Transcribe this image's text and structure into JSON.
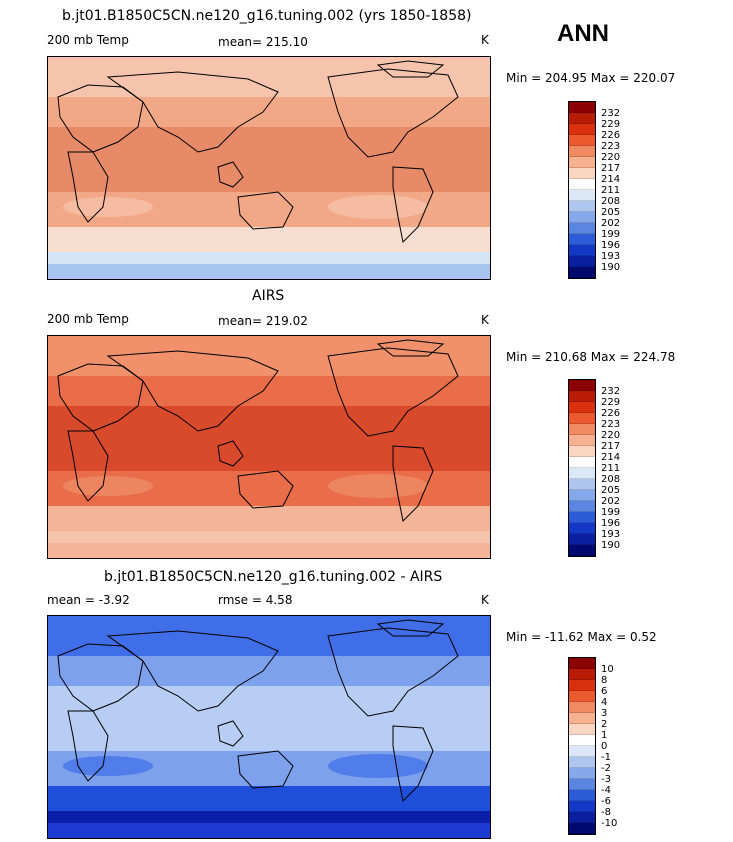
{
  "season": "ANN",
  "panels": [
    {
      "title": "b.jt01.B1850C5CN.ne120_g16.tuning.002 (yrs 1850-1858)",
      "left_label": "200 mb Temp",
      "mid_label": "mean= 215.10",
      "unit": "K",
      "minmax": "Min = 204.95 Max = 220.07",
      "colors": [
        "#f8ded0",
        "#f6c4ac",
        "#f2a887",
        "#e68a68"
      ],
      "polar_colors": [
        "#d6e4f8",
        "#a7c3ef"
      ]
    },
    {
      "title": "AIRS",
      "left_label": "200 mb Temp",
      "mid_label": "mean= 219.02",
      "unit": "K",
      "minmax": "Min = 210.68 Max = 224.78",
      "colors": [
        "#f4b497",
        "#f0916b",
        "#e86d48",
        "#d84a2b"
      ],
      "polar_colors": [
        "#f6c4ac",
        "#f4b497"
      ]
    },
    {
      "title": "b.jt01.B1850C5CN.ne120_g16.tuning.002 - AIRS",
      "left_label": "mean =   -3.92",
      "mid_label": "rmse =    4.58",
      "unit": "K",
      "minmax": "Min = -11.62 Max =    0.52",
      "colors": [
        "#1f4fd8",
        "#3f6ee8",
        "#7ea1ee",
        "#b8cdf3"
      ],
      "polar_colors": [
        "#0b1fa8",
        "#1c3ad0"
      ]
    }
  ],
  "colorbar_abs": {
    "labels": [
      "232",
      "229",
      "226",
      "223",
      "220",
      "217",
      "214",
      "211",
      "208",
      "205",
      "202",
      "199",
      "196",
      "193",
      "190"
    ],
    "colors": [
      "#8b0000",
      "#b81c05",
      "#d9300f",
      "#ea5a2e",
      "#f08a62",
      "#f6b191",
      "#f8d6c2",
      "#fdfdfd",
      "#dce8f8",
      "#aec6ef",
      "#84a8ea",
      "#5a86e2",
      "#2d5cd9",
      "#1438c6",
      "#0a1f9f",
      "#000a6e"
    ]
  },
  "colorbar_diff": {
    "labels": [
      "10",
      "8",
      "6",
      "4",
      "3",
      "2",
      "1",
      "0",
      "-1",
      "-2",
      "-3",
      "-4",
      "-6",
      "-8",
      "-10"
    ],
    "colors": [
      "#8b0000",
      "#b81c05",
      "#d9300f",
      "#ea5a2e",
      "#f08a62",
      "#f6b191",
      "#f8d6c2",
      "#fdfdfd",
      "#dce8f8",
      "#aec6ef",
      "#84a8ea",
      "#5a86e2",
      "#2d5cd9",
      "#1438c6",
      "#0a1f9f",
      "#000a6e"
    ]
  }
}
